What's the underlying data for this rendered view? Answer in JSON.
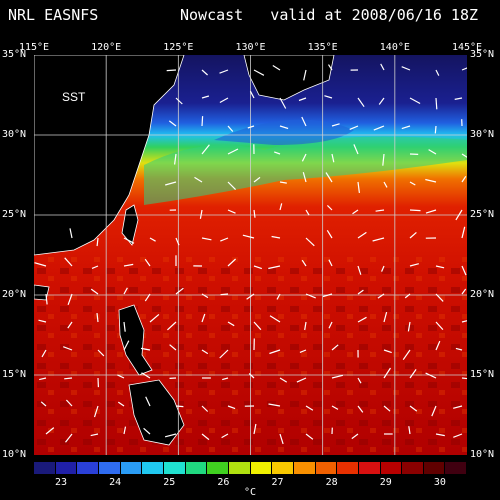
{
  "header": {
    "source": "NRL EASNFS",
    "product": "Nowcast   valid at 2008/06/16 18Z"
  },
  "map_label": "SST",
  "lon_ticks": [
    "115°E",
    "120°E",
    "125°E",
    "130°E",
    "135°E",
    "140°E",
    "145°E"
  ],
  "lat_ticks": [
    "35°N",
    "30°N",
    "25°N",
    "20°N",
    "15°N",
    "10°N"
  ],
  "colorbar": {
    "colors": [
      "#1a1a7a",
      "#2020a8",
      "#2a40d8",
      "#2f6cf0",
      "#2a9cf5",
      "#20c8f0",
      "#20e0d0",
      "#20d880",
      "#40d020",
      "#b0e010",
      "#f0f000",
      "#f8c800",
      "#f89000",
      "#f06000",
      "#e83000",
      "#d81010",
      "#b80000",
      "#8a0000",
      "#600000",
      "#400010"
    ],
    "labels": [
      "23",
      "24",
      "25",
      "26",
      "27",
      "28",
      "29",
      "30"
    ],
    "unit": "°C"
  },
  "chart_data": {
    "type": "heatmap",
    "title": "NRL EASNFS Nowcast valid at 2008/06/16 18Z",
    "variable": "SST",
    "unit": "°C",
    "lon_range": [
      115,
      145
    ],
    "lat_range": [
      10,
      35
    ],
    "color_range": [
      22.5,
      30.5
    ],
    "grid": true
  }
}
